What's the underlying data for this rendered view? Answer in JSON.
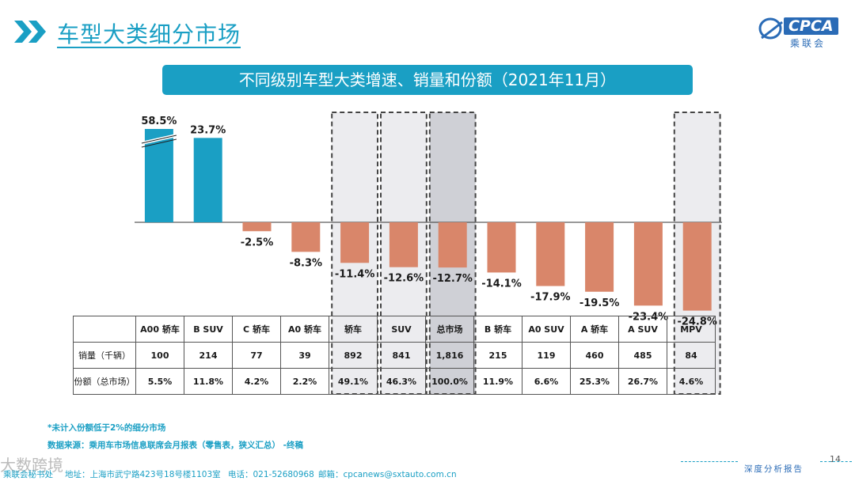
{
  "header": {
    "title": "车型大类细分市场",
    "logo_text": "CPCA",
    "logo_sub": "乘联会",
    "logo_small": "CPCA"
  },
  "banner": {
    "text": "不同级别车型大类增速、销量和份额（2021年11月）"
  },
  "chart_data": {
    "type": "bar",
    "title": "不同级别车型大类增速、销量和份额（2021年11月）",
    "categories": [
      "A00 轿车",
      "B SUV",
      "C 轿车",
      "A0 轿车",
      "轿车",
      "SUV",
      "总市场",
      "B 轿车",
      "A0 SUV",
      "A 轿车",
      "A SUV",
      "MPV"
    ],
    "values": [
      58.5,
      23.7,
      -2.5,
      -8.3,
      -11.4,
      -12.6,
      -12.7,
      -14.1,
      -17.9,
      -19.5,
      -23.4,
      -24.8
    ],
    "value_labels": [
      "58.5%",
      "23.7%",
      "-2.5%",
      "-8.3%",
      "-11.4%",
      "-12.6%",
      "-12.7%",
      "-14.1%",
      "-17.9%",
      "-19.5%",
      "-23.4%",
      "-24.8%"
    ],
    "unit": "%",
    "axis_break": "A00 轿车",
    "highlighted": [
      "轿车",
      "SUV",
      "总市场",
      "MPV"
    ],
    "colors": {
      "positive": "#1a9fc4",
      "negative": "#d9866a",
      "highlight_box": "#ececef",
      "total_box": "#cfd0d6"
    }
  },
  "table": {
    "row_labels": [
      "销量（千辆）",
      "份额（总市场）"
    ],
    "sales": [
      "100",
      "214",
      "77",
      "39",
      "892",
      "841",
      "1,816",
      "215",
      "119",
      "460",
      "485",
      "84"
    ],
    "share": [
      "5.5%",
      "11.8%",
      "4.2%",
      "2.2%",
      "49.1%",
      "46.3%",
      "100.0%",
      "11.9%",
      "6.6%",
      "25.3%",
      "26.7%",
      "4.6%"
    ]
  },
  "notes": {
    "footnote": "*未计入份额低于2%的细分市场",
    "source": "数据来源：乘用车市场信息联席会月报表（零售表，狭义汇总） -终稿"
  },
  "footer": {
    "org": "乘联会秘书处",
    "address": "地址：上海市武宁路423号18号楼1103室",
    "phone": "电话：021-52680968",
    "email": "邮箱：cpcanews@sxtauto.com.cn",
    "tagline": "深度分析报告",
    "page": "14",
    "watermark": "大数跨境"
  }
}
